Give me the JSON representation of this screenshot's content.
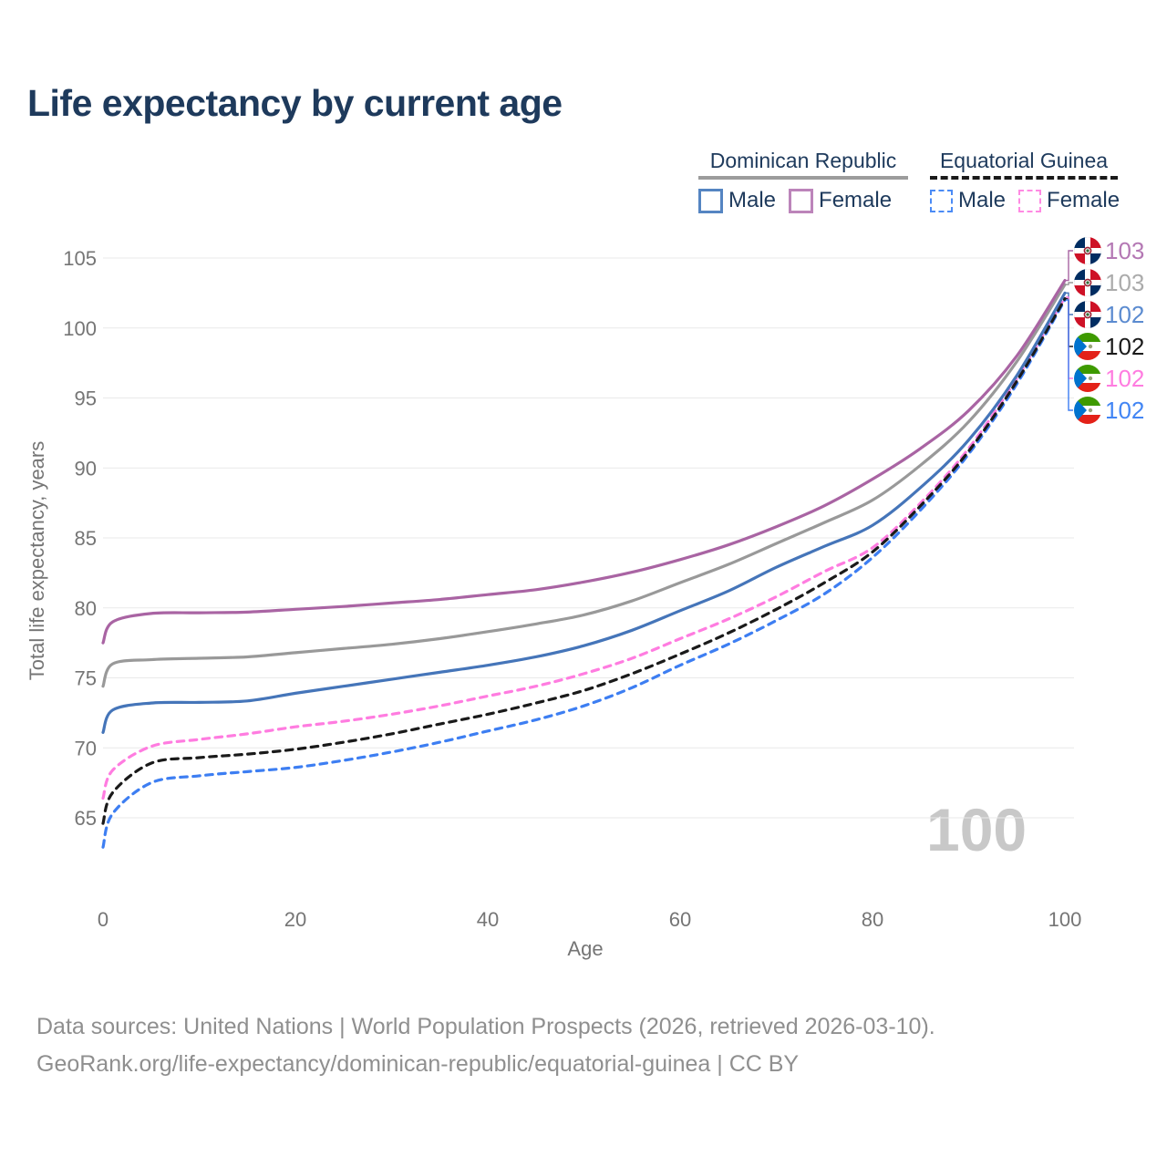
{
  "title": "Life expectancy by current age",
  "legend": {
    "groups": [
      {
        "label": "Dominican Republic",
        "line_style": "solid",
        "items": [
          {
            "label": "Male",
            "color": "#5585c2"
          },
          {
            "label": "Female",
            "color": "#bc84ba"
          }
        ]
      },
      {
        "label": "Equatorial Guinea",
        "line_style": "dashed",
        "items": [
          {
            "label": "Male",
            "color": "#4b8bf5"
          },
          {
            "label": "Female",
            "color": "#ff8ae3"
          }
        ]
      }
    ]
  },
  "watermark": "100",
  "footer": {
    "line1": "Data sources: United Nations | World Population Prospects (2026, retrieved 2026-03-10).",
    "line2": "GeoRank.org/life-expectancy/dominican-republic/equatorial-guinea | CC BY"
  },
  "chart_data": {
    "type": "line",
    "title": "Life expectancy by current age",
    "xlabel": "Age",
    "ylabel": "Total life expectancy, years",
    "xlim": [
      0,
      100
    ],
    "ylim": [
      62,
      106.5
    ],
    "x_ticks": [
      0,
      20,
      40,
      60,
      80,
      100
    ],
    "y_ticks": [
      65,
      70,
      75,
      80,
      85,
      90,
      95,
      100,
      105
    ],
    "grid": "horizontal",
    "axis_color": "#757575",
    "grid_color": "#e9e9e9",
    "x": [
      0,
      1,
      5,
      10,
      15,
      20,
      25,
      30,
      35,
      40,
      45,
      50,
      55,
      60,
      65,
      70,
      75,
      80,
      85,
      90,
      95,
      100
    ],
    "series": [
      {
        "name": "Dominican Republic Female",
        "flag": "dominican-republic",
        "dashed": false,
        "color": "#a964a3",
        "end_label": "103",
        "end_label_color": "#b478b4",
        "values": [
          77.5,
          79.0,
          79.6,
          79.65,
          79.7,
          79.9,
          80.1,
          80.35,
          80.6,
          80.95,
          81.3,
          81.85,
          82.55,
          83.45,
          84.5,
          85.8,
          87.3,
          89.2,
          91.4,
          94.1,
          98.0,
          103.4
        ]
      },
      {
        "name": "Dominican Republic combined",
        "flag": "dominican-republic",
        "dashed": false,
        "color": "#999999",
        "end_label": "103",
        "end_label_color": "#ababab",
        "values": [
          74.4,
          76.0,
          76.3,
          76.4,
          76.5,
          76.8,
          77.1,
          77.4,
          77.8,
          78.3,
          78.85,
          79.5,
          80.5,
          81.8,
          83.1,
          84.6,
          86.1,
          87.7,
          90.2,
          93.3,
          97.6,
          103.1
        ]
      },
      {
        "name": "Dominican Republic Male",
        "flag": "dominican-republic",
        "dashed": false,
        "color": "#4575b9",
        "end_label": "102",
        "end_label_color": "#5b8bd0",
        "values": [
          71.1,
          72.7,
          73.2,
          73.25,
          73.35,
          73.9,
          74.4,
          74.9,
          75.4,
          75.9,
          76.5,
          77.3,
          78.4,
          79.8,
          81.2,
          82.9,
          84.4,
          85.9,
          88.6,
          92.0,
          96.6,
          102.5
        ]
      },
      {
        "name": "Equatorial Guinea combined",
        "flag": "equatorial-guinea",
        "dashed": true,
        "color": "#1a1a1a",
        "end_label": "102",
        "end_label_color": "#1a1a1a",
        "values": [
          64.6,
          66.8,
          68.9,
          69.3,
          69.55,
          69.9,
          70.4,
          71.0,
          71.7,
          72.4,
          73.2,
          74.1,
          75.3,
          76.7,
          78.2,
          79.9,
          81.8,
          84.0,
          87.3,
          91.2,
          96.2,
          102.1
        ]
      },
      {
        "name": "Equatorial Guinea Female",
        "flag": "equatorial-guinea",
        "dashed": true,
        "color": "#ff7ce0",
        "end_label": "102",
        "end_label_color": "#ff7ce0",
        "values": [
          66.4,
          68.4,
          70.1,
          70.6,
          71.0,
          71.5,
          71.9,
          72.4,
          73.0,
          73.7,
          74.4,
          75.3,
          76.4,
          77.8,
          79.2,
          80.8,
          82.6,
          84.3,
          87.5,
          91.4,
          96.4,
          102.2
        ]
      },
      {
        "name": "Equatorial Guinea Male",
        "flag": "equatorial-guinea",
        "dashed": true,
        "color": "#3d7ef2",
        "end_label": "102",
        "end_label_color": "#4285f4",
        "values": [
          62.9,
          65.3,
          67.5,
          68.0,
          68.3,
          68.6,
          69.1,
          69.7,
          70.4,
          71.2,
          72.0,
          73.0,
          74.3,
          75.9,
          77.4,
          79.1,
          81.0,
          83.6,
          87.0,
          91.0,
          96.0,
          102.0
        ]
      }
    ]
  }
}
